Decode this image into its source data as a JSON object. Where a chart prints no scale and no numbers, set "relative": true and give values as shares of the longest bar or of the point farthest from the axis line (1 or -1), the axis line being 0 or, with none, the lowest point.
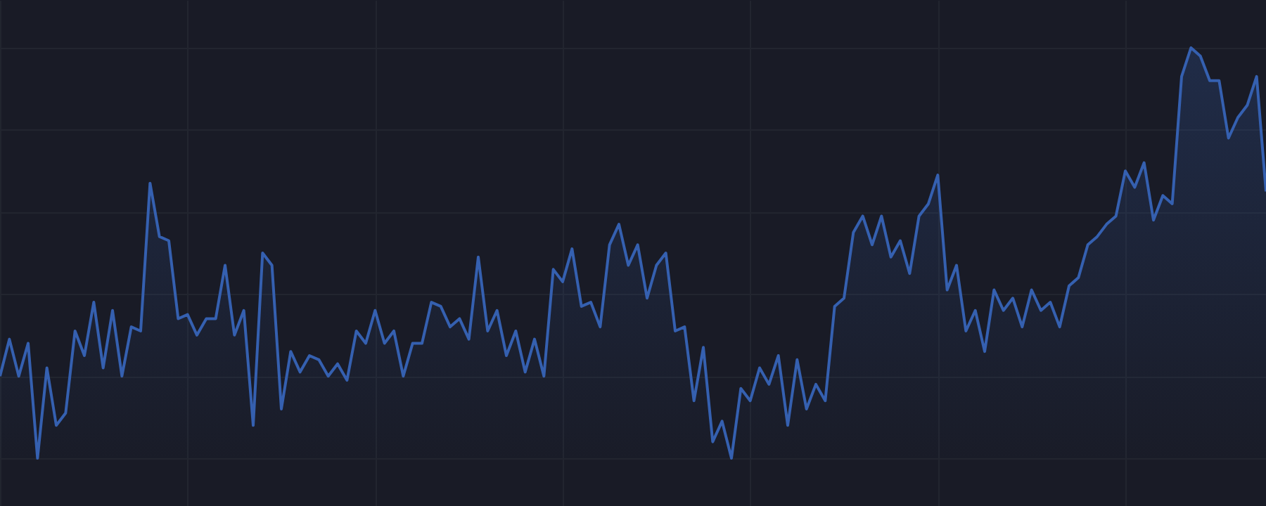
{
  "chart_data": {
    "type": "area",
    "relative": true,
    "grid": true,
    "categories": [
      null,
      null,
      null,
      null,
      null,
      null,
      null,
      null,
      null,
      null,
      null,
      null,
      null,
      null,
      null,
      null,
      null,
      null,
      null,
      null,
      null,
      null,
      null,
      null,
      null,
      null,
      null,
      null,
      null,
      null,
      null,
      null,
      null,
      null,
      null,
      null,
      null,
      null,
      null,
      null,
      null,
      null,
      null,
      null,
      null,
      null,
      null,
      null,
      null,
      null,
      null,
      null,
      null,
      null,
      null,
      null,
      null,
      null,
      null,
      null,
      null,
      null,
      null,
      null,
      null,
      null,
      null,
      null,
      null,
      null,
      null,
      null,
      null,
      null,
      null,
      null,
      null,
      null,
      null,
      null,
      null,
      null,
      null,
      null,
      null,
      null,
      null,
      null,
      null,
      null,
      null,
      null,
      null,
      null,
      null,
      null,
      null,
      null,
      null,
      null,
      null,
      null,
      null,
      null,
      null,
      null,
      null,
      null,
      null,
      null,
      null,
      null,
      null,
      null,
      null,
      null,
      null,
      null,
      null,
      null,
      null,
      null,
      null,
      null,
      null,
      null,
      null,
      null,
      null,
      null,
      null,
      null,
      null,
      null,
      null,
      null
    ],
    "series": [
      {
        "color": "#3560b0",
        "values": [
          0.2,
          0.29,
          0.2,
          0.28,
          0,
          0.22,
          0.08,
          0.11,
          0.31,
          0.25,
          0.38,
          0.22,
          0.36,
          0.2,
          0.32,
          0.31,
          0.67,
          0.54,
          0.53,
          0.34,
          0.35,
          0.3,
          0.34,
          0.34,
          0.47,
          0.3,
          0.36,
          0.08,
          0.5,
          0.47,
          0.12,
          0.26,
          0.21,
          0.25,
          0.24,
          0.2,
          0.23,
          0.19,
          0.31,
          0.28,
          0.36,
          0.28,
          0.31,
          0.2,
          0.28,
          0.28,
          0.38,
          0.37,
          0.32,
          0.34,
          0.29,
          0.49,
          0.31,
          0.36,
          0.25,
          0.31,
          0.21,
          0.29,
          0.2,
          0.46,
          0.43,
          0.51,
          0.37,
          0.38,
          0.32,
          0.52,
          0.57,
          0.47,
          0.52,
          0.39,
          0.47,
          0.5,
          0.31,
          0.32,
          0.14,
          0.27,
          0.04,
          0.09,
          0,
          0.17,
          0.14,
          0.22,
          0.18,
          0.25,
          0.08,
          0.24,
          0.12,
          0.18,
          0.14,
          0.37,
          0.39,
          0.55,
          0.59,
          0.52,
          0.59,
          0.49,
          0.53,
          0.45,
          0.59,
          0.62,
          0.69,
          0.41,
          0.47,
          0.31,
          0.36,
          0.26,
          0.41,
          0.36,
          0.39,
          0.32,
          0.41,
          0.36,
          0.38,
          0.32,
          0.42,
          0.44,
          0.52,
          0.54,
          0.57,
          0.59,
          0.7,
          0.66,
          0.72,
          0.58,
          0.64,
          0.62,
          0.93,
          1,
          0.98,
          0.92,
          0.92,
          0.78,
          0.83,
          0.86,
          0.93,
          0.65
        ]
      }
    ]
  }
}
